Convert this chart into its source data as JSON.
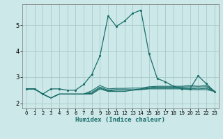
{
  "xlabel": "Humidex (Indice chaleur)",
  "ylabel": "",
  "background_color": "#cce8e8",
  "grid_color": "#aacaca",
  "line_color": "#1a6e6a",
  "xlim": [
    -0.5,
    23.5
  ],
  "ylim": [
    1.8,
    5.8
  ],
  "xticks": [
    0,
    1,
    2,
    3,
    4,
    5,
    6,
    7,
    8,
    9,
    10,
    11,
    12,
    13,
    14,
    15,
    16,
    17,
    18,
    19,
    20,
    21,
    22,
    23
  ],
  "yticks": [
    2,
    3,
    4,
    5
  ],
  "series": [
    {
      "x": [
        0,
        1,
        2,
        3,
        4,
        5,
        6,
        7,
        8,
        9,
        10,
        11,
        12,
        13,
        14,
        15,
        16,
        17,
        18,
        19,
        20,
        21,
        22,
        23
      ],
      "y": [
        2.55,
        2.55,
        2.35,
        2.2,
        2.35,
        2.35,
        2.35,
        2.35,
        2.35,
        2.55,
        2.45,
        2.45,
        2.45,
        2.5,
        2.52,
        2.55,
        2.55,
        2.55,
        2.55,
        2.55,
        2.52,
        2.52,
        2.52,
        2.45
      ],
      "marker": null,
      "lw": 0.8
    },
    {
      "x": [
        0,
        1,
        2,
        3,
        4,
        5,
        6,
        7,
        8,
        9,
        10,
        11,
        12,
        13,
        14,
        15,
        16,
        17,
        18,
        19,
        20,
        21,
        22,
        23
      ],
      "y": [
        2.55,
        2.55,
        2.35,
        2.2,
        2.35,
        2.35,
        2.35,
        2.35,
        2.38,
        2.58,
        2.47,
        2.5,
        2.5,
        2.5,
        2.53,
        2.57,
        2.58,
        2.58,
        2.58,
        2.58,
        2.57,
        2.55,
        2.57,
        2.46
      ],
      "marker": null,
      "lw": 0.8
    },
    {
      "x": [
        0,
        1,
        2,
        3,
        4,
        5,
        6,
        7,
        8,
        9,
        10,
        11,
        12,
        13,
        14,
        15,
        16,
        17,
        18,
        19,
        20,
        21,
        22,
        23
      ],
      "y": [
        2.55,
        2.55,
        2.35,
        2.2,
        2.35,
        2.35,
        2.35,
        2.35,
        2.42,
        2.62,
        2.5,
        2.52,
        2.52,
        2.52,
        2.55,
        2.6,
        2.62,
        2.62,
        2.62,
        2.62,
        2.63,
        2.62,
        2.63,
        2.46
      ],
      "marker": null,
      "lw": 0.8
    },
    {
      "x": [
        0,
        1,
        2,
        3,
        4,
        5,
        6,
        7,
        8,
        9,
        10,
        11,
        12,
        13,
        14,
        15,
        16,
        17,
        18,
        19,
        20,
        21,
        22,
        23
      ],
      "y": [
        2.55,
        2.55,
        2.35,
        2.2,
        2.35,
        2.35,
        2.35,
        2.35,
        2.48,
        2.68,
        2.55,
        2.57,
        2.57,
        2.58,
        2.58,
        2.63,
        2.65,
        2.65,
        2.65,
        2.65,
        2.68,
        2.65,
        2.68,
        2.46
      ],
      "marker": null,
      "lw": 0.8
    },
    {
      "x": [
        0,
        1,
        2,
        3,
        4,
        5,
        6,
        7,
        8,
        9,
        10,
        11,
        12,
        13,
        14,
        15,
        16,
        17,
        18,
        19,
        20,
        21,
        22,
        23
      ],
      "y": [
        2.55,
        2.55,
        2.35,
        2.55,
        2.55,
        2.5,
        2.5,
        2.72,
        3.1,
        3.82,
        5.35,
        4.95,
        5.15,
        5.45,
        5.57,
        3.9,
        2.95,
        2.82,
        2.65,
        2.55,
        2.55,
        3.05,
        2.75,
        2.45
      ],
      "marker": ".",
      "lw": 0.9
    }
  ]
}
